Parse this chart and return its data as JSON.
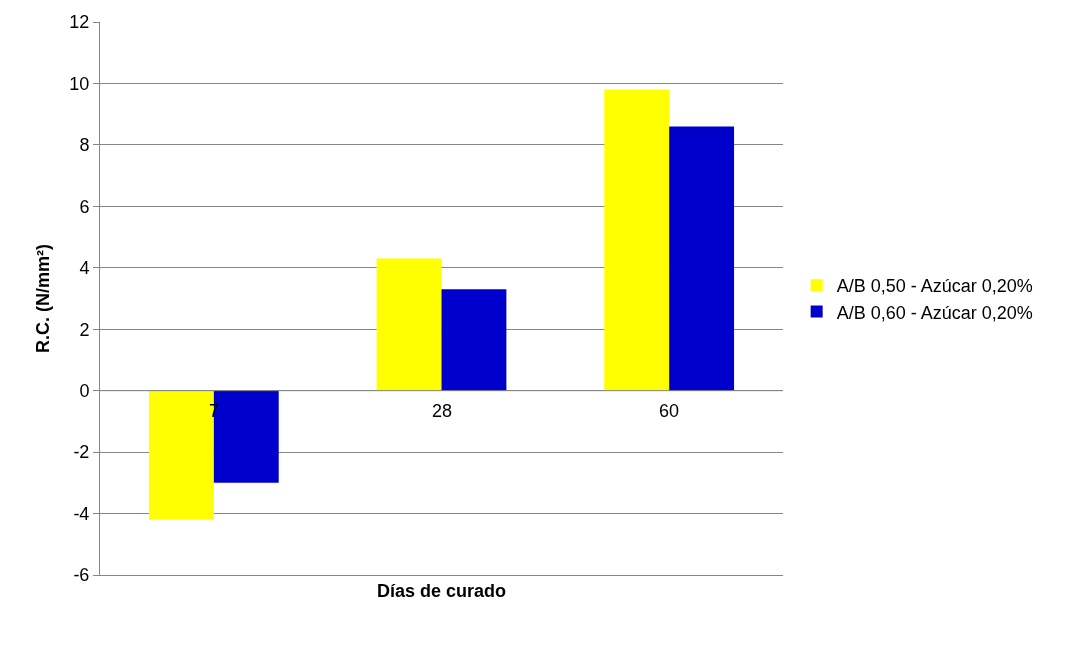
{
  "chart_data": {
    "type": "bar",
    "categories": [
      "7",
      "28",
      "60"
    ],
    "series": [
      {
        "name": "A/B 0,50 - Azúcar 0,20%",
        "color": "#ffff00",
        "values": [
          -4.2,
          4.3,
          9.8
        ]
      },
      {
        "name": "A/B 0,60 - Azúcar 0,20%",
        "color": "#0000cc",
        "values": [
          -3.0,
          3.3,
          8.6
        ]
      }
    ],
    "xlabel": "Días de curado",
    "ylabel": "R.C. (N/mm²)",
    "ylim": [
      -6,
      12
    ],
    "yticks": [
      -6,
      -4,
      -2,
      0,
      2,
      4,
      6,
      8,
      10,
      12
    ],
    "grid": "y",
    "legend": "right"
  }
}
